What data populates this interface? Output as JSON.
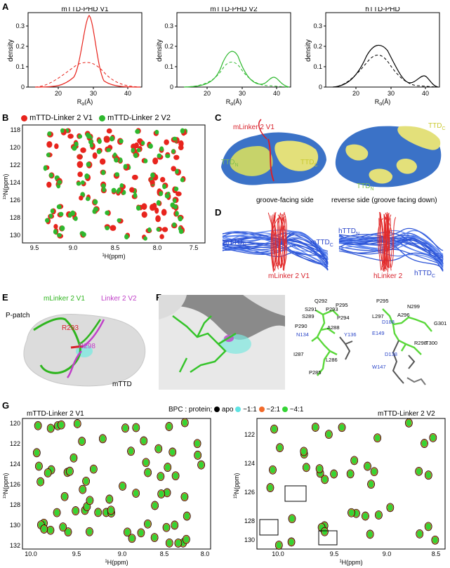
{
  "panels": {
    "A": "A",
    "B": "B",
    "C": "C",
    "D": "D",
    "E": "E",
    "F": "F",
    "G": "G"
  },
  "panel_a": {
    "plots": [
      {
        "title": "mTTD-PHD V1",
        "ylabel": "density",
        "xlabel": "R_g(Å)",
        "color": "#e8241d"
      },
      {
        "title": "mTTD-PHD V2",
        "ylabel": "density",
        "xlabel": "R_g(Å)",
        "color": "#2eb82e"
      },
      {
        "title": "hTTD-PHD",
        "ylabel": "density",
        "xlabel": "R_g(Å)",
        "color": "#000000"
      }
    ],
    "yticks": [
      "0",
      "0.1",
      "0.2",
      "0.3"
    ],
    "xticks": [
      "20",
      "30",
      "40"
    ]
  },
  "panel_b": {
    "legend": [
      "mTTD-Linker 2 V1",
      "mTTD-Linker 2 V2"
    ],
    "legend_colors": [
      "#e8241d",
      "#2eb82e"
    ],
    "ylabel": "15N(ppm)",
    "xlabel": "1H(ppm)",
    "yticks": [
      "118",
      "120",
      "122",
      "124",
      "126",
      "128",
      "130"
    ],
    "xticks": [
      "9.5",
      "9.0",
      "8.5",
      "8.0",
      "7.5"
    ]
  },
  "panel_c": {
    "left_labels": {
      "linker": "mLinker 2 V1",
      "ttdn": "TTD",
      "ttdc": "TTD",
      "caption": "groove-facing side"
    },
    "right_labels": {
      "ttdc": "TTD",
      "ttdn": "TTD",
      "caption": "reverse side (groove facing down)"
    },
    "sub_n": "N",
    "sub_c": "C"
  },
  "panel_d": {
    "left": {
      "ttdn": "mTTD",
      "ttdc": "mTTD",
      "linker": "mLinker 2 V1"
    },
    "right": {
      "ttdn": "hTTD",
      "ttdc": "hTTD",
      "linker": "hLinker 2"
    },
    "sub_n": "N",
    "sub_c": "C"
  },
  "panel_e": {
    "v1": "mLinker 2 V1",
    "v2": "Linker 2 V2",
    "patch": "P-patch",
    "r293": "R293",
    "r298": "R298",
    "mttd": "mTTD"
  },
  "panel_f": {
    "left_residues": [
      "Q292",
      "P295",
      "S291",
      "P293",
      "S289",
      "P294",
      "A288",
      "P290",
      "Y136",
      "N134",
      "I287",
      "L286",
      "P285"
    ],
    "right_residues": [
      "P295",
      "N299",
      "A296",
      "L297",
      "G301",
      "D188",
      "E149",
      "R298",
      "T300",
      "D138",
      "W147"
    ]
  },
  "panel_g": {
    "left_title": "mTTD-Linker 2 V1",
    "legend_prefix": "BPC : protein; ",
    "legend_items": [
      "apo",
      "~1:1",
      "~2:1",
      "~4:1"
    ],
    "legend_colors": [
      "#000000",
      "#5fe3e3",
      "#f26a2a",
      "#35d435"
    ],
    "right_title": "mTTD-Linker 2 V2",
    "left_yticks": [
      "120",
      "122",
      "124",
      "126",
      "128",
      "130",
      "132"
    ],
    "left_xticks": [
      "10.0",
      "9.5",
      "9.0",
      "8.5",
      "8.0"
    ],
    "right_yticks": [
      "122",
      "124",
      "126",
      "128",
      "130"
    ],
    "right_xticks": [
      "10.0",
      "9.5",
      "9.0",
      "8.5"
    ],
    "ylabel": "15N(ppm)",
    "xlabel": "1H(ppm)"
  }
}
